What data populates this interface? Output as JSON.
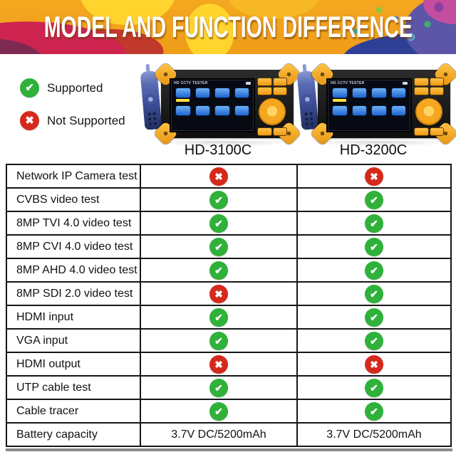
{
  "banner": {
    "title": "MODEL AND FUNCTION DIFFERENCE"
  },
  "legend": {
    "supported": "Supported",
    "not_supported": "Not Supported"
  },
  "icons": {
    "check": "✔",
    "cross": "✖"
  },
  "colors": {
    "supported": "#2fb13a",
    "not_supported": "#d5291c",
    "banner_orange": "#f3a51e"
  },
  "products": [
    {
      "name": "HD-3100C",
      "screen_title": "HD CCTV TESTER"
    },
    {
      "name": "HD-3200C",
      "screen_title": "HD CCTV TESTER"
    }
  ],
  "comparison_table": {
    "rows": [
      {
        "feature": "Network IP Camera test",
        "values": [
          "not-supported",
          "not-supported"
        ]
      },
      {
        "feature": "CVBS video test",
        "values": [
          "supported",
          "supported"
        ]
      },
      {
        "feature": "8MP TVI 4.0 video test",
        "values": [
          "supported",
          "supported"
        ]
      },
      {
        "feature": "8MP CVI 4.0 video test",
        "values": [
          "supported",
          "supported"
        ]
      },
      {
        "feature": "8MP AHD 4.0 video test",
        "values": [
          "supported",
          "supported"
        ]
      },
      {
        "feature": "8MP SDI 2.0 video test",
        "values": [
          "not-supported",
          "supported"
        ]
      },
      {
        "feature": "HDMI input",
        "values": [
          "supported",
          "supported"
        ]
      },
      {
        "feature": "VGA input",
        "values": [
          "supported",
          "supported"
        ]
      },
      {
        "feature": "HDMI output",
        "values": [
          "not-supported",
          "not-supported"
        ]
      },
      {
        "feature": "UTP cable test",
        "values": [
          "supported",
          "supported"
        ]
      },
      {
        "feature": "Cable tracer",
        "values": [
          "supported",
          "supported"
        ]
      },
      {
        "feature": "Battery capacity",
        "values": [
          "3.7V DC/5200mAh",
          "3.7V DC/5200mAh"
        ]
      }
    ]
  }
}
